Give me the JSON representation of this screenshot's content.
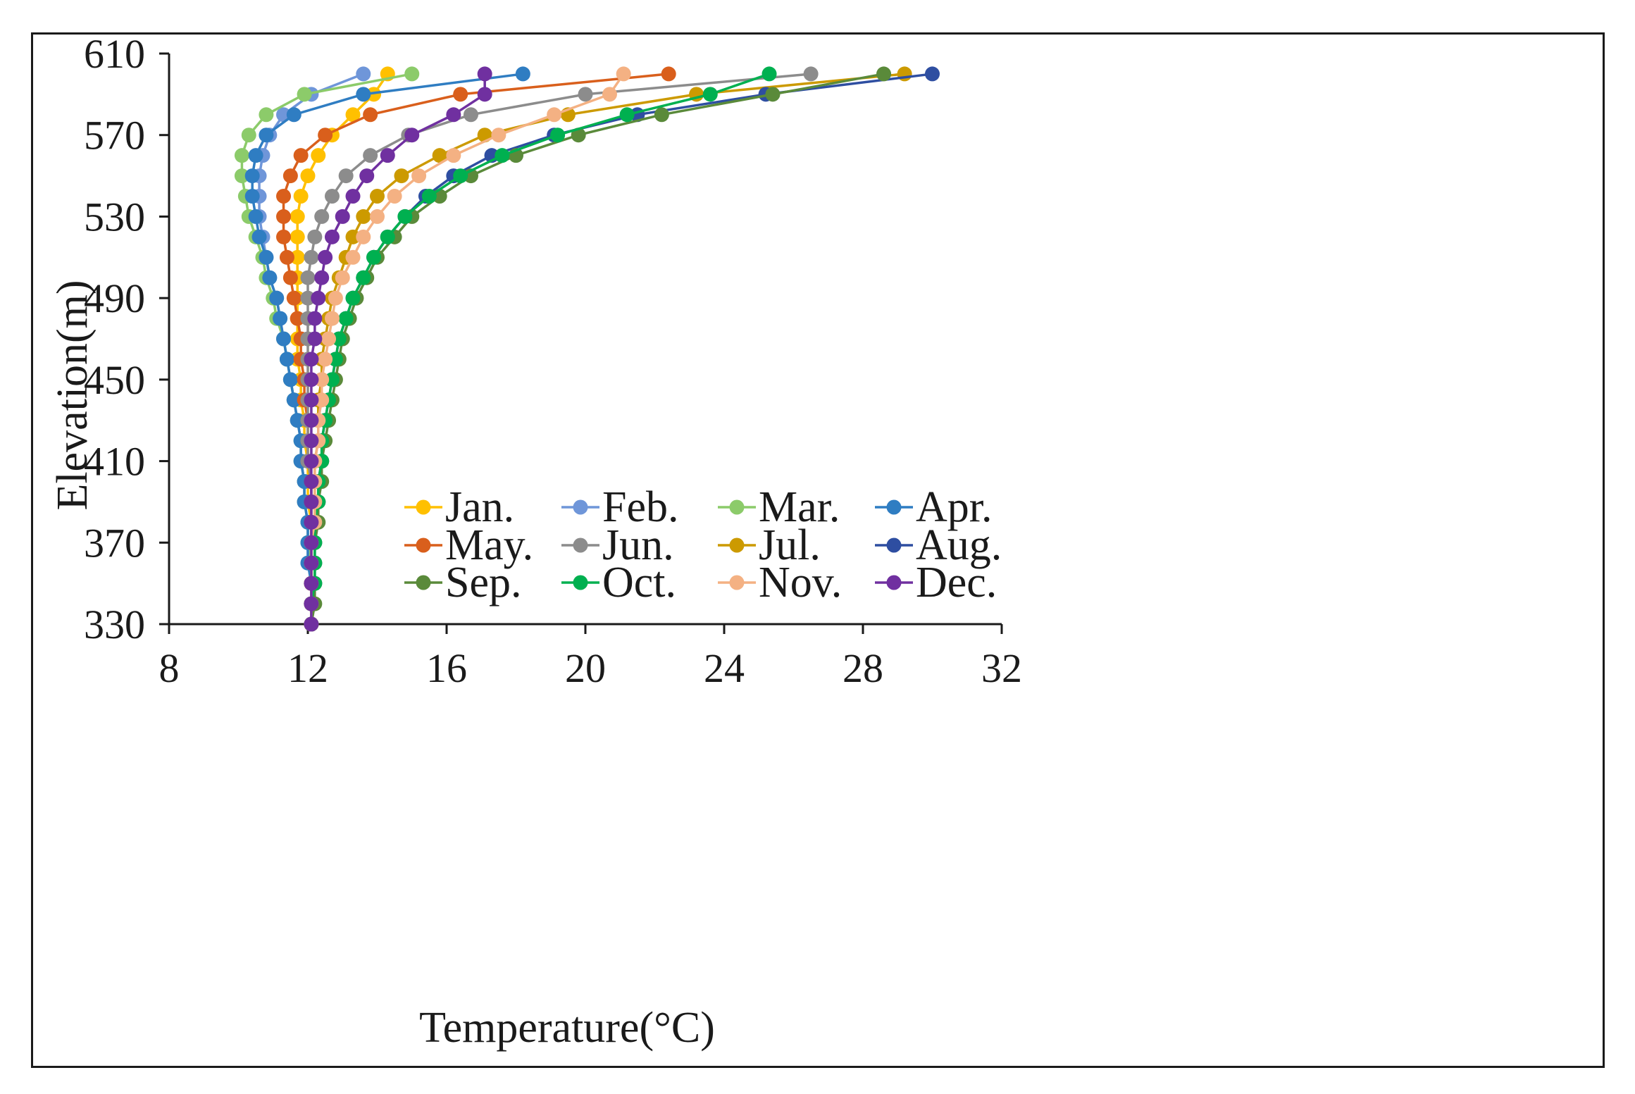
{
  "chart_data": {
    "type": "line",
    "xlabel": "Temperature(°C)",
    "ylabel": "Elevation(m)",
    "xlim": [
      8,
      32
    ],
    "ylim": [
      330,
      610
    ],
    "xticks": [
      8,
      12,
      16,
      20,
      24,
      28,
      32
    ],
    "yticks": [
      330,
      370,
      410,
      450,
      490,
      530,
      570,
      610
    ],
    "grid": false,
    "legend_position": "bottom-right",
    "elevations": [
      600,
      590,
      580,
      570,
      560,
      550,
      540,
      530,
      520,
      510,
      500,
      490,
      480,
      470,
      460,
      450,
      440,
      430,
      420,
      410,
      400,
      390,
      380,
      370,
      360,
      350,
      340,
      330
    ],
    "series": [
      {
        "name": "Jan.",
        "color": "#FFC000",
        "temperatures": [
          14.3,
          13.9,
          13.3,
          12.7,
          12.3,
          12.0,
          11.8,
          11.7,
          11.7,
          11.7,
          11.7,
          11.7,
          11.7,
          11.7,
          11.7,
          11.8,
          11.8,
          11.9,
          11.9,
          12.0,
          12.0,
          12.0,
          12.1,
          12.1,
          12.1,
          12.1,
          12.1,
          12.1
        ]
      },
      {
        "name": "Feb.",
        "color": "#6F96D9",
        "temperatures": [
          13.6,
          12.1,
          11.3,
          10.9,
          10.7,
          10.6,
          10.6,
          10.6,
          10.7,
          10.8,
          10.9,
          11.1,
          11.2,
          11.3,
          11.4,
          11.5,
          11.6,
          11.7,
          11.8,
          11.8,
          11.9,
          11.9,
          12.0,
          12.0,
          12.0,
          12.1,
          12.1,
          12.1
        ]
      },
      {
        "name": "Mar.",
        "color": "#8CCB6A",
        "temperatures": [
          15.0,
          11.9,
          10.8,
          10.3,
          10.1,
          10.1,
          10.2,
          10.3,
          10.5,
          10.7,
          10.8,
          11.0,
          11.1,
          11.3,
          11.4,
          11.5,
          11.6,
          11.7,
          11.8,
          11.8,
          11.9,
          11.9,
          12.0,
          12.0,
          12.1,
          12.1,
          12.1,
          12.1
        ]
      },
      {
        "name": "Apr.",
        "color": "#2F7DC2",
        "temperatures": [
          18.2,
          13.6,
          11.6,
          10.8,
          10.5,
          10.4,
          10.4,
          10.5,
          10.6,
          10.8,
          10.9,
          11.1,
          11.2,
          11.3,
          11.4,
          11.5,
          11.6,
          11.7,
          11.8,
          11.8,
          11.9,
          11.9,
          12.0,
          12.0,
          12.0,
          12.1,
          12.1,
          12.1
        ]
      },
      {
        "name": "May.",
        "color": "#D95F1C",
        "temperatures": [
          22.4,
          16.4,
          13.8,
          12.5,
          11.8,
          11.5,
          11.3,
          11.3,
          11.3,
          11.4,
          11.5,
          11.6,
          11.7,
          11.8,
          11.8,
          11.9,
          11.9,
          12.0,
          12.0,
          12.0,
          12.1,
          12.1,
          12.1,
          12.1,
          12.1,
          12.1,
          12.1,
          12.1
        ]
      },
      {
        "name": "Jun.",
        "color": "#8C8C8C",
        "temperatures": [
          26.5,
          20.0,
          16.7,
          14.9,
          13.8,
          13.1,
          12.7,
          12.4,
          12.2,
          12.1,
          12.0,
          12.0,
          12.0,
          12.0,
          12.0,
          12.0,
          12.0,
          12.0,
          12.0,
          12.0,
          12.1,
          12.1,
          12.1,
          12.1,
          12.1,
          12.1,
          12.1,
          12.1
        ]
      },
      {
        "name": "Jul.",
        "color": "#CC9A00",
        "temperatures": [
          29.2,
          23.2,
          19.5,
          17.1,
          15.8,
          14.7,
          14.0,
          13.6,
          13.3,
          13.1,
          12.9,
          12.7,
          12.6,
          12.5,
          12.4,
          12.4,
          12.3,
          12.3,
          12.3,
          12.2,
          12.2,
          12.2,
          12.2,
          12.1,
          12.1,
          12.1,
          12.1,
          12.1
        ]
      },
      {
        "name": "Aug.",
        "color": "#2E4EA1",
        "temperatures": [
          30.0,
          25.2,
          21.5,
          19.1,
          17.3,
          16.2,
          15.4,
          14.8,
          14.3,
          13.9,
          13.6,
          13.3,
          13.1,
          12.9,
          12.8,
          12.7,
          12.6,
          12.5,
          12.4,
          12.4,
          12.3,
          12.3,
          12.2,
          12.2,
          12.2,
          12.2,
          12.1,
          12.1
        ]
      },
      {
        "name": "Sep.",
        "color": "#5A8A3A",
        "temperatures": [
          28.6,
          25.4,
          22.2,
          19.8,
          18.0,
          16.7,
          15.8,
          15.0,
          14.5,
          14.0,
          13.7,
          13.4,
          13.2,
          13.0,
          12.9,
          12.8,
          12.7,
          12.6,
          12.5,
          12.4,
          12.4,
          12.3,
          12.3,
          12.2,
          12.2,
          12.2,
          12.2,
          12.1
        ]
      },
      {
        "name": "Oct.",
        "color": "#00B050",
        "temperatures": [
          25.3,
          23.6,
          21.2,
          19.2,
          17.6,
          16.4,
          15.5,
          14.8,
          14.3,
          13.9,
          13.6,
          13.3,
          13.1,
          12.9,
          12.8,
          12.7,
          12.6,
          12.5,
          12.4,
          12.4,
          12.3,
          12.3,
          12.2,
          12.2,
          12.2,
          12.2,
          12.1,
          12.1
        ]
      },
      {
        "name": "Nov.",
        "color": "#F4B183",
        "temperatures": [
          21.1,
          20.7,
          19.1,
          17.5,
          16.2,
          15.2,
          14.5,
          14.0,
          13.6,
          13.3,
          13.0,
          12.8,
          12.7,
          12.6,
          12.5,
          12.4,
          12.4,
          12.3,
          12.3,
          12.2,
          12.2,
          12.2,
          12.2,
          12.1,
          12.1,
          12.1,
          12.1,
          12.1
        ]
      },
      {
        "name": "Dec.",
        "color": "#7030A0",
        "temperatures": [
          17.1,
          17.1,
          16.2,
          15.0,
          14.3,
          13.7,
          13.3,
          13.0,
          12.7,
          12.5,
          12.4,
          12.3,
          12.2,
          12.2,
          12.1,
          12.1,
          12.1,
          12.1,
          12.1,
          12.1,
          12.1,
          12.1,
          12.1,
          12.1,
          12.1,
          12.1,
          12.1,
          12.1
        ]
      }
    ]
  }
}
